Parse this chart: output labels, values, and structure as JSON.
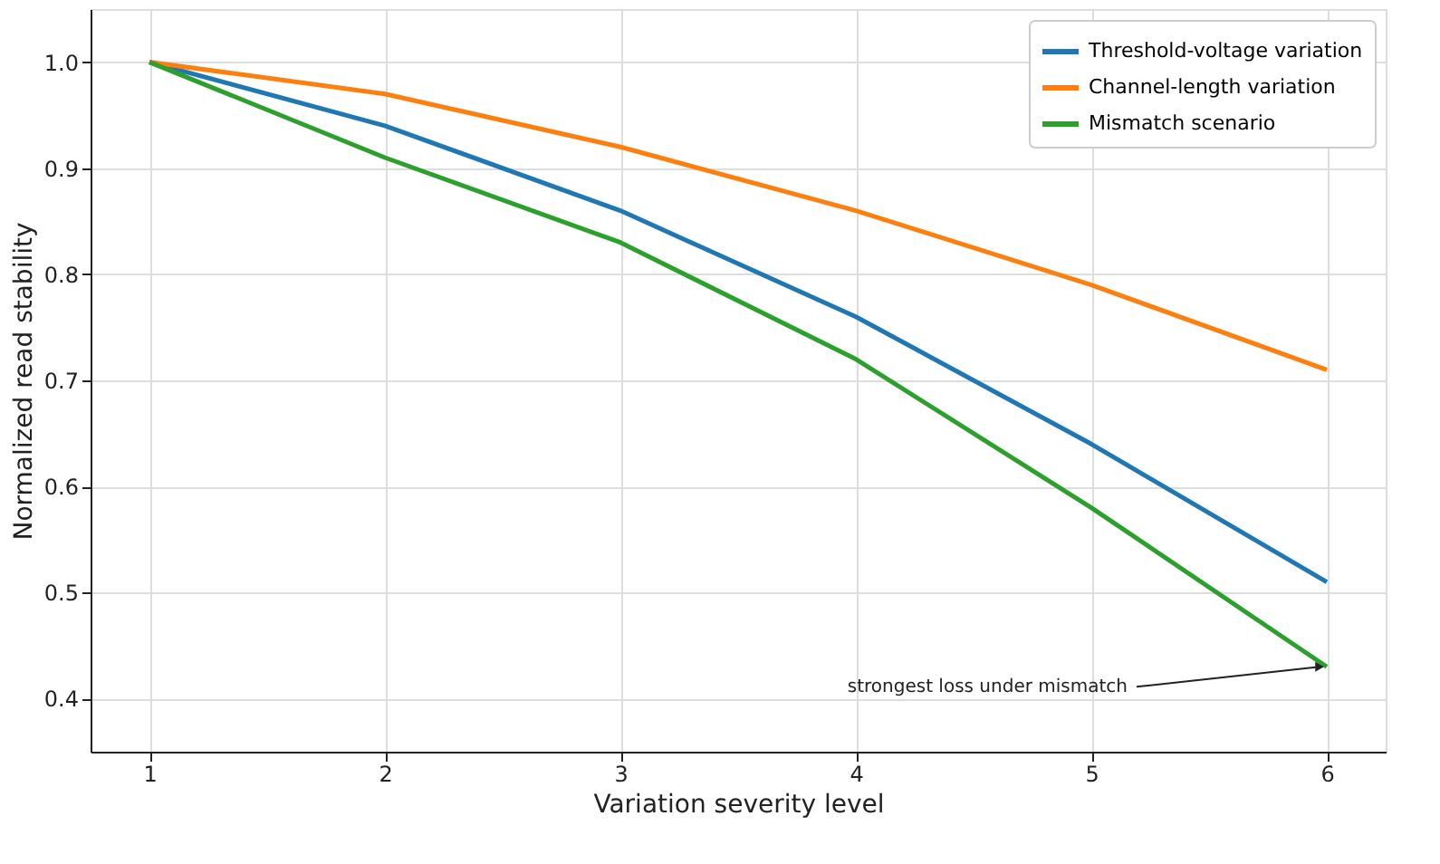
{
  "chart_data": {
    "type": "line",
    "xlabel": "Variation severity level",
    "ylabel": "Normalized read stability",
    "x": [
      1,
      2,
      3,
      4,
      5,
      6
    ],
    "series": [
      {
        "name": "Threshold-voltage variation",
        "color": "#1f77b4",
        "values": [
          1.0,
          0.94,
          0.86,
          0.76,
          0.64,
          0.51
        ]
      },
      {
        "name": "Channel-length variation",
        "color": "#ff7f0e",
        "values": [
          1.0,
          0.97,
          0.92,
          0.86,
          0.79,
          0.71
        ]
      },
      {
        "name": "Mismatch scenario",
        "color": "#2ca02c",
        "values": [
          1.0,
          0.91,
          0.83,
          0.72,
          0.58,
          0.43
        ]
      }
    ],
    "xlim": [
      0.75,
      6.25
    ],
    "xticks": [
      1,
      2,
      3,
      4,
      5,
      6
    ],
    "ylim": [
      0.35,
      1.05
    ],
    "yticks": [
      {
        "value": 0.4,
        "label": "0.4"
      },
      {
        "value": 0.5,
        "label": "0.5"
      },
      {
        "value": 0.6,
        "label": "0.6"
      },
      {
        "value": 0.7,
        "label": "0.7"
      },
      {
        "value": 0.8,
        "label": "0.8"
      },
      {
        "value": 0.9,
        "label": "0.9"
      },
      {
        "value": 1,
        "label": "1.0"
      }
    ],
    "annotations": [
      {
        "text": "strongest loss under mismatch",
        "x": 6,
        "y": 0.43
      }
    ],
    "grid": true,
    "legend": "top right",
    "marker": "none",
    "line_style": "solid"
  }
}
